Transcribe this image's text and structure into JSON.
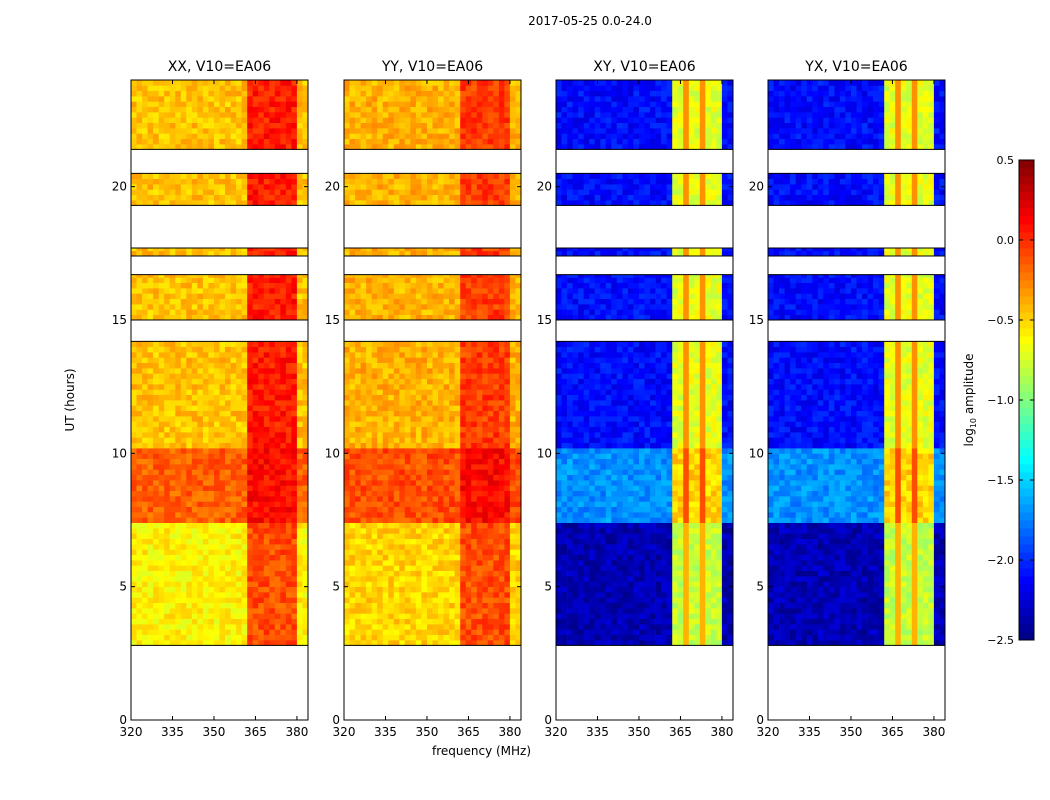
{
  "figure": {
    "suptitle": "2017-05-25 0.0-24.0",
    "ylabel": "UT (hours)",
    "xlabel": "frequency (MHz)",
    "colorbar_label": "log",
    "colorbar_sub": "10",
    "colorbar_label_rest": " amplitude"
  },
  "chart_data": {
    "type": "heatmap",
    "title": "2017-05-25 0.0-24.0",
    "xlabel": "frequency (MHz)",
    "ylabel": "UT (hours)",
    "xlim": [
      320,
      384
    ],
    "ylim": [
      0,
      24
    ],
    "xticks": [
      320,
      335,
      350,
      365,
      380
    ],
    "yticks": [
      0,
      5,
      10,
      15,
      20
    ],
    "colorbar": {
      "label": "log10 amplitude",
      "range": [
        -2.5,
        0.5
      ],
      "ticks": [
        "0.5",
        "0.0",
        "−0.5",
        "−1.0",
        "−1.5",
        "−2.0",
        "−2.5"
      ],
      "tick_values": [
        0.5,
        0,
        -0.5,
        -1,
        -1.5,
        -2,
        -2.5
      ],
      "colormap": "jet"
    },
    "time_blocks": [
      {
        "start": 2.8,
        "end": 14.2
      },
      {
        "start": 15.0,
        "end": 16.7
      },
      {
        "start": 17.4,
        "end": 17.7
      },
      {
        "start": 19.3,
        "end": 20.5
      },
      {
        "start": 21.4,
        "end": 24.0
      }
    ],
    "rfi_bands_mhz": [
      [
        362,
        367
      ],
      [
        368,
        373
      ],
      [
        374,
        380
      ]
    ],
    "panels": [
      {
        "title": "XX, V10=EA06",
        "levels": [
          {
            "start": 2.8,
            "end": 7.3,
            "base": -0.6,
            "band": -0.1
          },
          {
            "start": 7.3,
            "end": 10.0,
            "base": -0.15,
            "band": 0.1
          },
          {
            "start": 10.0,
            "end": 24.0,
            "base": -0.45,
            "band": 0.05
          }
        ]
      },
      {
        "title": "YY, V10=EA06",
        "levels": [
          {
            "start": 2.8,
            "end": 7.3,
            "base": -0.5,
            "band": -0.1
          },
          {
            "start": 7.3,
            "end": 10.0,
            "base": -0.1,
            "band": 0.1
          },
          {
            "start": 10.0,
            "end": 24.0,
            "base": -0.4,
            "band": -0.05
          }
        ]
      },
      {
        "title": "XY, V10=EA06",
        "levels": [
          {
            "start": 2.8,
            "end": 7.3,
            "base": -2.35,
            "band": -0.8
          },
          {
            "start": 7.3,
            "end": 10.0,
            "base": -1.7,
            "band": -0.5
          },
          {
            "start": 10.0,
            "end": 24.0,
            "base": -2.1,
            "band": -0.7
          }
        ]
      },
      {
        "title": "YX, V10=EA06",
        "levels": [
          {
            "start": 2.8,
            "end": 7.3,
            "base": -2.35,
            "band": -0.8
          },
          {
            "start": 7.3,
            "end": 10.0,
            "base": -1.7,
            "band": -0.5
          },
          {
            "start": 10.0,
            "end": 24.0,
            "base": -2.1,
            "band": -0.7
          }
        ]
      }
    ]
  }
}
